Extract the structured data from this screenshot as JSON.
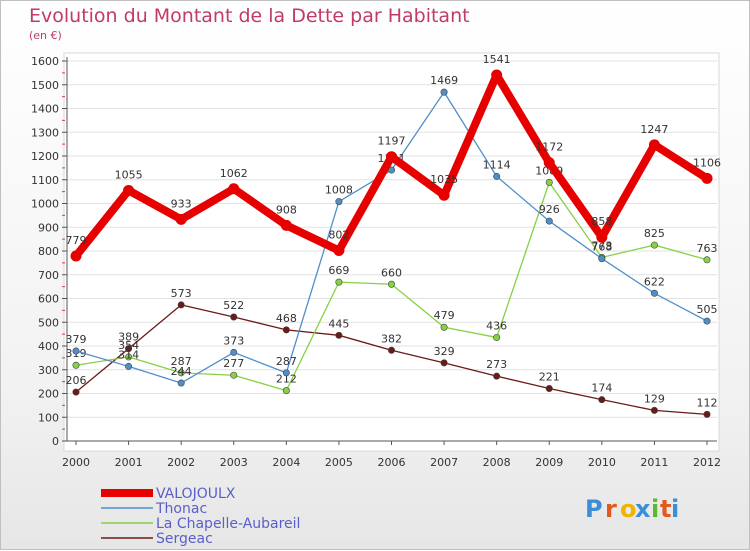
{
  "chart_data": {
    "type": "line",
    "title": "Evolution du Montant de la Dette par Habitant",
    "subtitle": "(en €)",
    "categories": [
      "2000",
      "2001",
      "2002",
      "2003",
      "2004",
      "2005",
      "2006",
      "2007",
      "2008",
      "2009",
      "2010",
      "2011",
      "2012"
    ],
    "ylim": [
      0,
      1600
    ],
    "yticks": [
      0,
      100,
      200,
      300,
      400,
      500,
      600,
      700,
      800,
      900,
      1000,
      1100,
      1200,
      1300,
      1400,
      1500,
      1600
    ],
    "grid": "horizontal",
    "legend_position": "bottom-left",
    "series": [
      {
        "name": "VALOJOULX",
        "color": "#e60000",
        "values": [
          779,
          1055,
          933,
          1062,
          908,
          802,
          1197,
          1035,
          1541,
          1172,
          858,
          1247,
          1106
        ]
      },
      {
        "name": "Thonac",
        "color": "#4f8fc9",
        "values": [
          379,
          314,
          244,
          373,
          287,
          1008,
          1141,
          1469,
          1114,
          926,
          768,
          622,
          505
        ]
      },
      {
        "name": "La Chapelle-Aubareil",
        "color": "#88d044",
        "values": [
          319,
          354,
          287,
          277,
          212,
          669,
          660,
          479,
          436,
          1089,
          773,
          825,
          763
        ]
      },
      {
        "name": "Sergeac",
        "color": "#6b1a1a",
        "values": [
          206,
          389,
          573,
          522,
          468,
          445,
          382,
          329,
          273,
          221,
          174,
          129,
          112
        ]
      }
    ]
  },
  "watermark": "Proxiti"
}
